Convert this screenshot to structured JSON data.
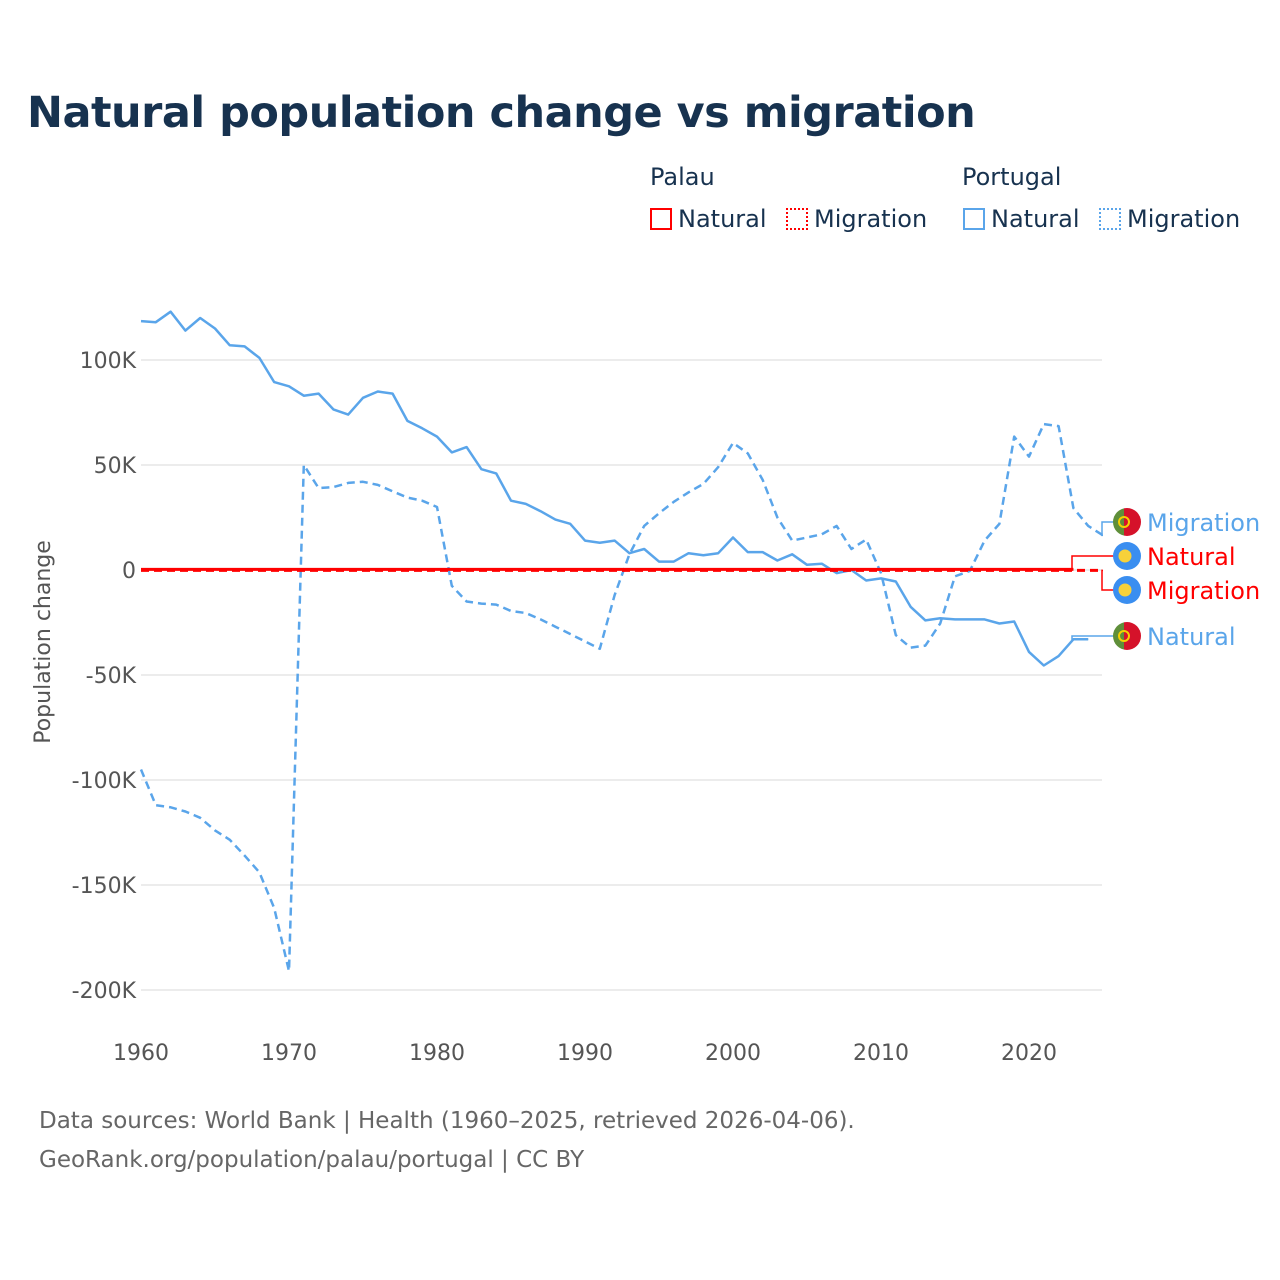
{
  "title": "Natural population change vs migration",
  "legend": {
    "groups": [
      {
        "label": "Palau",
        "items": [
          {
            "label": "Natural",
            "style": "solid",
            "color": "#ff0000"
          },
          {
            "label": "Migration",
            "style": "dotted",
            "color": "#ff0000"
          }
        ]
      },
      {
        "label": "Portugal",
        "items": [
          {
            "label": "Natural",
            "style": "solid",
            "color": "#5aa5ea"
          },
          {
            "label": "Migration",
            "style": "dotted",
            "color": "#5aa5ea"
          }
        ]
      }
    ]
  },
  "footer": {
    "line1": "Data sources: World Bank | Health (1960–2025, retrieved 2026-04-06).",
    "line2": "GeoRank.org/population/palau/portugal | CC BY"
  },
  "chart_data": {
    "type": "line",
    "title": "Natural population change vs migration",
    "xlabel": "",
    "ylabel": "Population change",
    "xlim": [
      1960,
      2025
    ],
    "ylim": [
      -200000,
      120000
    ],
    "x_ticks": [
      1960,
      1970,
      1980,
      1990,
      2000,
      2010,
      2020
    ],
    "x_tick_labels": [
      "1960",
      "1970",
      "1980",
      "1990",
      "2000",
      "2010",
      "2020"
    ],
    "y_ticks": [
      100000,
      50000,
      0,
      -50000,
      -100000,
      -150000,
      -200000
    ],
    "y_tick_labels": [
      "100K",
      "50K",
      "0",
      "-50K",
      "-100K",
      "-150K",
      "-200K"
    ],
    "grid": true,
    "legend_position": "top-right",
    "series": [
      {
        "name": "Palau Natural",
        "country": "Palau",
        "label": "Natural",
        "color": "#ff0000",
        "dash": "solid",
        "start_year": 1960,
        "values": [
          300,
          300,
          300,
          300,
          300,
          300,
          300,
          300,
          300,
          300,
          300,
          300,
          300,
          300,
          300,
          300,
          300,
          300,
          300,
          300,
          300,
          300,
          300,
          300,
          300,
          300,
          300,
          300,
          300,
          300,
          300,
          300,
          300,
          300,
          300,
          300,
          300,
          300,
          300,
          300,
          300,
          300,
          300,
          300,
          300,
          300,
          300,
          300,
          300,
          300,
          300,
          300,
          300,
          300,
          300,
          300,
          300,
          300,
          300,
          300,
          300,
          300,
          300,
          300
        ]
      },
      {
        "name": "Palau Migration",
        "country": "Palau",
        "label": "Migration",
        "color": "#ff0000",
        "dash": "dashed",
        "start_year": 1960,
        "values": [
          -200,
          -200,
          -200,
          -200,
          -200,
          -200,
          -200,
          -200,
          -200,
          -200,
          -200,
          -200,
          -200,
          -200,
          -200,
          -200,
          -200,
          -200,
          -200,
          -200,
          -200,
          -200,
          -200,
          -200,
          -200,
          -200,
          -200,
          -200,
          -200,
          -200,
          -200,
          -200,
          -200,
          -200,
          -200,
          -200,
          -200,
          -200,
          -200,
          -200,
          -200,
          -200,
          -200,
          -200,
          -200,
          -200,
          -200,
          -200,
          -200,
          -200,
          -200,
          -200,
          -200,
          -200,
          -200,
          -200,
          -200,
          -200,
          -200,
          -200,
          -200,
          -200,
          -200,
          -200,
          -200,
          -200
        ]
      },
      {
        "name": "Portugal Natural",
        "country": "Portugal",
        "label": "Natural",
        "color": "#5aa5ea",
        "dash": "solid",
        "start_year": 1960,
        "values": [
          118500,
          118000,
          123000,
          114000,
          120000,
          115000,
          107000,
          106500,
          101000,
          89500,
          87500,
          83000,
          84000,
          76500,
          74000,
          82000,
          85000,
          84000,
          71000,
          67500,
          63500,
          56000,
          58500,
          48000,
          46000,
          33000,
          31500,
          28000,
          24000,
          22000,
          14000,
          13000,
          14000,
          8000,
          10000,
          4000,
          4000,
          8000,
          7000,
          8000,
          15500,
          8500,
          8500,
          4500,
          7500,
          2500,
          3000,
          -1500,
          0,
          -5000,
          -4000,
          -5500,
          -17500,
          -24000,
          -23000,
          -23500,
          -23500,
          -23500,
          -25500,
          -24500,
          -39000,
          -45500,
          -41000,
          -33000,
          -33000
        ]
      },
      {
        "name": "Portugal Migration",
        "country": "Portugal",
        "label": "Migration",
        "color": "#5aa5ea",
        "dash": "dashed",
        "start_year": 1960,
        "values": [
          -95000,
          -112000,
          -113000,
          -115000,
          -118000,
          -124000,
          -128500,
          -136000,
          -144000,
          -161000,
          -191000,
          50000,
          39000,
          39500,
          41500,
          42000,
          40500,
          37500,
          34500,
          33000,
          30000,
          -7500,
          -15000,
          -16000,
          -16500,
          -19500,
          -20500,
          -23500,
          -27000,
          -30500,
          -34000,
          -37500,
          -12000,
          7500,
          21000,
          27000,
          32500,
          37000,
          41000,
          49000,
          60500,
          55500,
          43000,
          25000,
          14000,
          15500,
          17000,
          21000,
          10000,
          14500,
          -1500,
          -31000,
          -37000,
          -36000,
          -25500,
          -3000,
          -500,
          14000,
          22000,
          63500,
          54000,
          69500,
          68500,
          29500,
          21000,
          16500
        ]
      }
    ],
    "end_labels": [
      {
        "series": "Portugal Migration",
        "text": "Migration",
        "flag": "portugal-flag"
      },
      {
        "series": "Palau Natural",
        "text": "Natural",
        "flag": "palau-flag"
      },
      {
        "series": "Palau Migration",
        "text": "Migration",
        "flag": "palau-flag"
      },
      {
        "series": "Portugal Natural",
        "text": "Natural",
        "flag": "portugal-flag"
      }
    ]
  }
}
